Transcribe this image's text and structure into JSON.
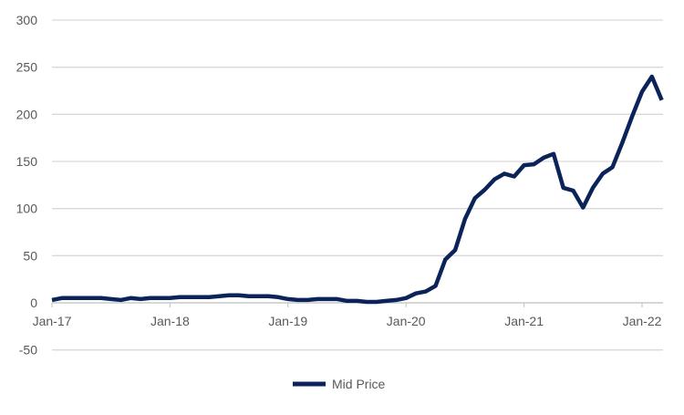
{
  "chart_data": {
    "type": "line",
    "title": "",
    "xlabel": "",
    "ylabel": "",
    "ylim": [
      -50,
      300
    ],
    "yticks": [
      "-50",
      "0",
      "50",
      "100",
      "150",
      "200",
      "250",
      "300"
    ],
    "yticks_values": [
      -50,
      0,
      50,
      100,
      150,
      200,
      250,
      300
    ],
    "xtick_labels": [
      "Jan-17",
      "Jan-18",
      "Jan-19",
      "Jan-20",
      "Jan-21",
      "Jan-22"
    ],
    "grid": true,
    "legend_position": "bottom",
    "color": "#0b2358",
    "series": [
      {
        "name": "Mid Price",
        "start": "Jan-17",
        "frequency": "monthly",
        "values": [
          3,
          5,
          5,
          5,
          5,
          5,
          4,
          3,
          5,
          4,
          5,
          5,
          5,
          6,
          6,
          6,
          6,
          7,
          8,
          8,
          7,
          7,
          7,
          6,
          4,
          3,
          3,
          4,
          4,
          4,
          2,
          2,
          1,
          1,
          2,
          3,
          5,
          10,
          12,
          18,
          46,
          56,
          89,
          111,
          120,
          131,
          137,
          134,
          146,
          147,
          154,
          158,
          122,
          119,
          101,
          122,
          137,
          144,
          170,
          198,
          224,
          240,
          215
        ]
      }
    ]
  }
}
